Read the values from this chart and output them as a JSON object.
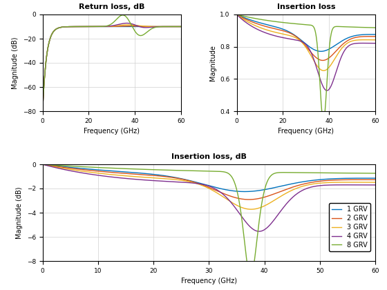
{
  "title1": "Return loss, dB",
  "title2": "Insertion loss",
  "title3": "Insertion loss, dB",
  "xlabel": "Frequency (GHz)",
  "ylabel1": "Magnitude (dB)",
  "ylabel2": "Magnitude",
  "ylabel3": "Magnitude (dB)",
  "xlim": [
    0,
    60
  ],
  "ylim1": [
    -80,
    0
  ],
  "ylim2": [
    0.4,
    1.0
  ],
  "ylim3": [
    -8,
    0
  ],
  "legend_labels": [
    "1 GRV",
    "2 GRV",
    "3 GRV",
    "4 GRV",
    "8 GRV"
  ],
  "colors": [
    "#0072bd",
    "#d95319",
    "#edb120",
    "#7e2f8e",
    "#77ac30"
  ],
  "freq_max": 60,
  "num_points": 600
}
